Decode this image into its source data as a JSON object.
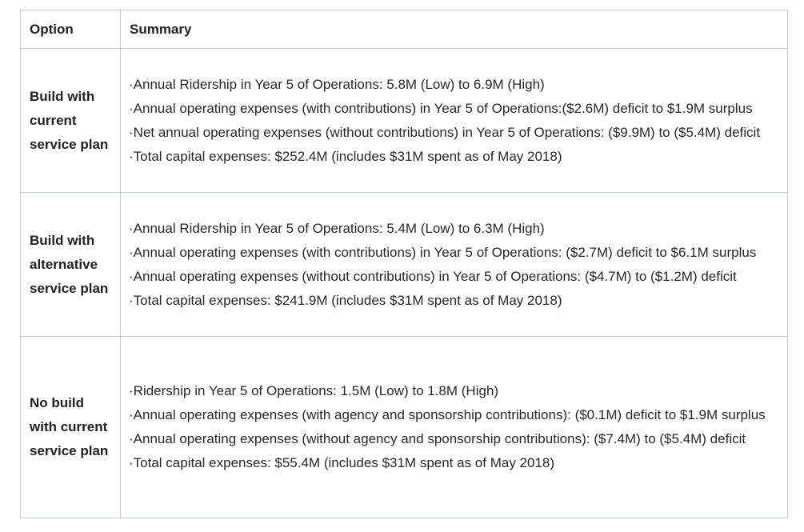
{
  "table": {
    "bullet": "·",
    "headers": [
      "Option",
      "Summary"
    ],
    "rows": [
      {
        "option": "Build with current service plan",
        "summary": [
          "Annual Ridership in Year 5 of Operations: 5.8M (Low) to 6.9M (High)",
          "Annual operating expenses (with contributions) in Year 5 of Operations:($2.6M) deficit to $1.9M surplus",
          "Net annual operating expenses (without contributions) in Year 5 of Operations: ($9.9M) to ($5.4M) deficit",
          "Total capital expenses: $252.4M (includes $31M spent as of May 2018)"
        ]
      },
      {
        "option": "Build with alternative service plan",
        "summary": [
          "Annual Ridership in Year 5 of Operations: 5.4M (Low) to 6.3M (High)",
          "Annual operating expenses (with contributions) in Year 5 of Operations: ($2.7M) deficit to $6.1M surplus",
          "Annual operating expenses (without contributions) in Year 5 of Operations: ($4.7M) to ($1.2M) deficit",
          "Total capital expenses: $241.9M (includes $31M spent as of May 2018)"
        ]
      },
      {
        "option": "No build with current service plan",
        "summary": [
          "Ridership in Year 5 of Operations: 1.5M (Low) to 1.8M (High)",
          "Annual operating expenses (with agency and sponsorship contributions): ($0.1M) deficit to $1.9M surplus",
          "Annual operating expenses (without agency and sponsorship contributions): ($7.4M) to ($5.4M) deficit",
          "Total capital expenses: $55.4M (includes $31M spent as of May 2018)"
        ]
      }
    ]
  },
  "colors": {
    "border": "#c3cdd5",
    "text": "#282828",
    "background": "#ffffff"
  }
}
